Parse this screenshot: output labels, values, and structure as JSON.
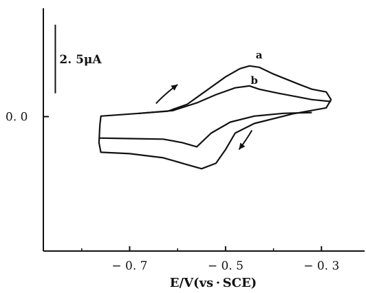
{
  "chart_data": {
    "type": "line",
    "title": "",
    "xlabel": "E/V(vs · SCE)",
    "xlim": [
      -0.88,
      -0.21
    ],
    "ylim": [
      -4.9,
      3.95
    ],
    "x_ticks": [
      {
        "value": -0.7,
        "label": "− 0. 7"
      },
      {
        "value": -0.5,
        "label": "− 0. 5"
      },
      {
        "value": -0.3,
        "label": "− 0. 3"
      }
    ],
    "x_minor_ticks": [
      -0.8,
      -0.6,
      -0.4
    ],
    "y_ticks": [
      {
        "value": 0.0,
        "label": "0. 0"
      }
    ],
    "scale_bar": {
      "label": "2. 5μA",
      "value": 2.5,
      "x": -0.855,
      "y_from": 0.85
    },
    "grid": false,
    "series": [
      {
        "name": "a",
        "label_at": [
          -0.43,
          2.25
        ],
        "points": [
          [
            -0.76,
            0.0
          ],
          [
            -0.76,
            0.02
          ],
          [
            -0.68,
            0.12
          ],
          [
            -0.62,
            0.2
          ],
          [
            -0.58,
            0.45
          ],
          [
            -0.54,
            0.95
          ],
          [
            -0.5,
            1.45
          ],
          [
            -0.47,
            1.75
          ],
          [
            -0.45,
            1.85
          ],
          [
            -0.43,
            1.8
          ],
          [
            -0.4,
            1.55
          ],
          [
            -0.35,
            1.2
          ],
          [
            -0.32,
            1.0
          ],
          [
            -0.29,
            0.9
          ],
          [
            -0.28,
            0.62
          ],
          [
            -0.29,
            0.32
          ],
          [
            -0.36,
            0.1
          ],
          [
            -0.44,
            -0.25
          ],
          [
            -0.48,
            -0.6
          ],
          [
            -0.5,
            -1.2
          ],
          [
            -0.52,
            -1.7
          ],
          [
            -0.55,
            -1.9
          ],
          [
            -0.58,
            -1.75
          ],
          [
            -0.63,
            -1.5
          ],
          [
            -0.7,
            -1.35
          ],
          [
            -0.76,
            -1.3
          ],
          [
            -0.764,
            -0.95
          ],
          [
            -0.762,
            -0.3
          ],
          [
            -0.76,
            0.0
          ]
        ]
      },
      {
        "name": "b",
        "label_at": [
          -0.44,
          1.32
        ],
        "points": [
          [
            -0.68,
            0.12
          ],
          [
            -0.61,
            0.22
          ],
          [
            -0.56,
            0.5
          ],
          [
            -0.52,
            0.8
          ],
          [
            -0.48,
            1.05
          ],
          [
            -0.45,
            1.12
          ],
          [
            -0.43,
            1.0
          ],
          [
            -0.39,
            0.85
          ],
          [
            -0.35,
            0.72
          ],
          [
            -0.32,
            0.62
          ],
          [
            -0.28,
            0.55
          ]
        ],
        "return_points": [
          [
            -0.32,
            0.15
          ],
          [
            -0.38,
            0.12
          ],
          [
            -0.44,
            0.02
          ],
          [
            -0.49,
            -0.2
          ],
          [
            -0.53,
            -0.6
          ],
          [
            -0.56,
            -1.1
          ],
          [
            -0.59,
            -0.95
          ],
          [
            -0.63,
            -0.82
          ],
          [
            -0.7,
            -0.8
          ],
          [
            -0.764,
            -0.78
          ]
        ]
      }
    ],
    "annotations": [
      {
        "type": "arrow",
        "direction": "anodic",
        "points": [
          [
            -0.645,
            0.48
          ],
          [
            -0.625,
            0.85
          ],
          [
            -0.6,
            1.17
          ]
        ]
      },
      {
        "type": "arrow",
        "direction": "cathodic",
        "points": [
          [
            -0.445,
            -0.5
          ],
          [
            -0.458,
            -0.88
          ],
          [
            -0.472,
            -1.2
          ]
        ]
      }
    ]
  }
}
